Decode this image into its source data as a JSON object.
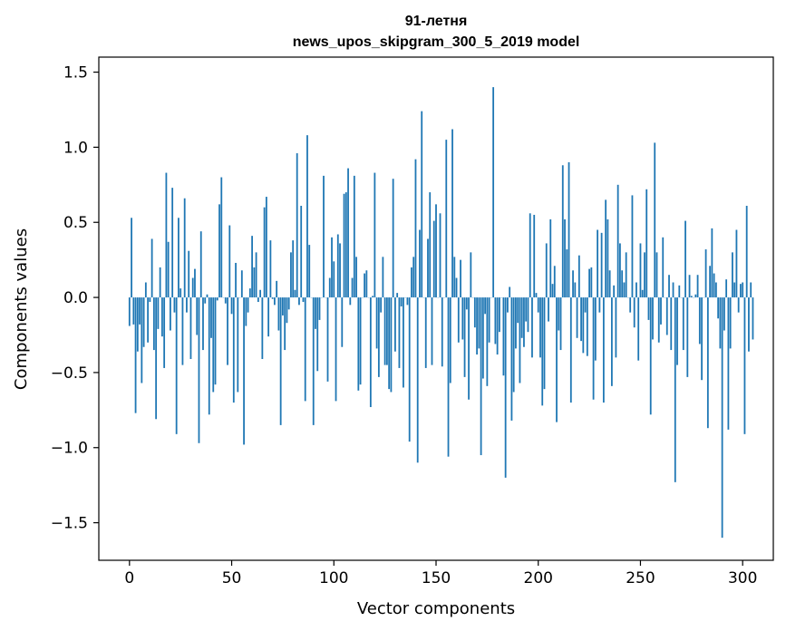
{
  "chart_data": {
    "type": "bar",
    "title_line1": "91-летня",
    "title_line2": "news_upos_skipgram_300_5_2019 model",
    "xlabel": "Vector components",
    "ylabel": "Components values",
    "xlim": [
      -15,
      315
    ],
    "ylim": [
      -1.75,
      1.6
    ],
    "xticks": [
      0,
      50,
      100,
      150,
      200,
      250,
      300
    ],
    "xtick_labels": [
      "0",
      "50",
      "100",
      "150",
      "200",
      "250",
      "300"
    ],
    "yticks": [
      -1.5,
      -1.0,
      -0.5,
      0.0,
      0.5,
      1.0,
      1.5
    ],
    "ytick_labels": [
      "−1.5",
      "−1.0",
      "−0.5",
      "0.0",
      "0.5",
      "1.0",
      "1.5"
    ],
    "bar_color": "#1f77b4",
    "grid": false,
    "values": [
      -0.19,
      0.53,
      -0.18,
      -0.77,
      -0.36,
      -0.18,
      -0.57,
      -0.33,
      0.1,
      -0.3,
      -0.03,
      0.39,
      -0.35,
      -0.81,
      -0.21,
      0.2,
      -0.26,
      -0.47,
      0.83,
      0.37,
      -0.22,
      0.73,
      -0.1,
      -0.91,
      0.53,
      0.06,
      -0.45,
      0.66,
      -0.1,
      0.31,
      -0.41,
      0.13,
      0.19,
      -0.25,
      -0.97,
      0.44,
      -0.35,
      -0.04,
      0.02,
      -0.78,
      -0.27,
      -0.63,
      -0.58,
      -0.02,
      0.62,
      0.8,
      0.0,
      -0.04,
      -0.45,
      0.48,
      -0.11,
      -0.7,
      0.23,
      -0.63,
      0.0,
      0.18,
      -0.98,
      -0.19,
      -0.1,
      0.06,
      0.41,
      0.2,
      0.3,
      -0.03,
      0.05,
      -0.41,
      0.6,
      0.67,
      -0.26,
      0.38,
      -0.01,
      -0.05,
      0.11,
      -0.22,
      -0.85,
      -0.12,
      -0.35,
      -0.17,
      -0.08,
      0.3,
      0.38,
      0.05,
      0.96,
      -0.05,
      0.61,
      -0.03,
      -0.69,
      1.08,
      0.35,
      0.0,
      -0.85,
      -0.21,
      -0.49,
      -0.15,
      0.0,
      0.81,
      0.0,
      -0.56,
      0.13,
      0.4,
      0.24,
      -0.69,
      0.42,
      0.36,
      -0.33,
      0.69,
      0.7,
      0.86,
      -0.05,
      0.13,
      0.81,
      0.27,
      -0.62,
      -0.58,
      0.0,
      0.16,
      0.18,
      0.0,
      -0.73,
      0.01,
      0.83,
      -0.34,
      -0.53,
      -0.1,
      0.27,
      -0.45,
      -0.45,
      -0.61,
      -0.63,
      0.79,
      -0.36,
      0.03,
      -0.47,
      -0.06,
      -0.6,
      0.0,
      -0.05,
      -0.96,
      0.2,
      0.27,
      0.92,
      -1.1,
      0.45,
      1.24,
      0.0,
      -0.47,
      0.39,
      0.7,
      -0.45,
      0.51,
      0.62,
      0.0,
      0.56,
      -0.46,
      0.0,
      1.05,
      -1.06,
      -0.57,
      1.12,
      0.27,
      0.13,
      -0.3,
      0.25,
      -0.28,
      -0.53,
      -0.08,
      -0.68,
      0.3,
      0.0,
      -0.2,
      -0.38,
      -0.34,
      -1.05,
      -0.54,
      -0.11,
      -0.59,
      -0.3,
      0.0,
      1.4,
      -0.31,
      -0.38,
      -0.23,
      0.0,
      -0.52,
      -1.2,
      -0.1,
      0.07,
      -0.82,
      -0.63,
      -0.34,
      -0.17,
      -0.57,
      -0.27,
      -0.33,
      -0.16,
      -0.23,
      0.56,
      -0.4,
      0.55,
      0.03,
      -0.1,
      -0.4,
      -0.72,
      -0.61,
      0.36,
      -0.16,
      0.52,
      0.09,
      0.21,
      -0.83,
      -0.22,
      -0.35,
      0.88,
      0.52,
      0.32,
      0.9,
      -0.7,
      0.18,
      0.1,
      -0.27,
      0.28,
      -0.29,
      -0.37,
      -0.1,
      -0.39,
      0.19,
      0.2,
      -0.68,
      -0.42,
      0.45,
      -0.1,
      0.43,
      -0.7,
      0.65,
      0.52,
      0.18,
      -0.59,
      0.08,
      -0.4,
      0.75,
      0.36,
      0.18,
      0.1,
      0.3,
      0.0,
      -0.1,
      0.68,
      -0.2,
      0.1,
      -0.42,
      0.36,
      0.05,
      0.3,
      0.72,
      -0.15,
      -0.78,
      -0.28,
      1.03,
      0.3,
      -0.3,
      -0.18,
      0.4,
      0.0,
      -0.25,
      0.15,
      -0.35,
      0.1,
      -1.23,
      -0.45,
      0.08,
      0.0,
      -0.35,
      0.51,
      -0.53,
      0.15,
      0.01,
      0.0,
      0.02,
      0.15,
      -0.31,
      -0.55,
      0.0,
      0.32,
      -0.87,
      0.21,
      0.46,
      0.16,
      0.1,
      -0.14,
      -0.34,
      -1.6,
      -0.22,
      0.12,
      -0.88,
      -0.34,
      0.3,
      0.1,
      0.45,
      -0.1,
      0.09,
      0.1,
      -0.91,
      0.61,
      -0.36,
      0.1,
      -0.28
    ]
  }
}
